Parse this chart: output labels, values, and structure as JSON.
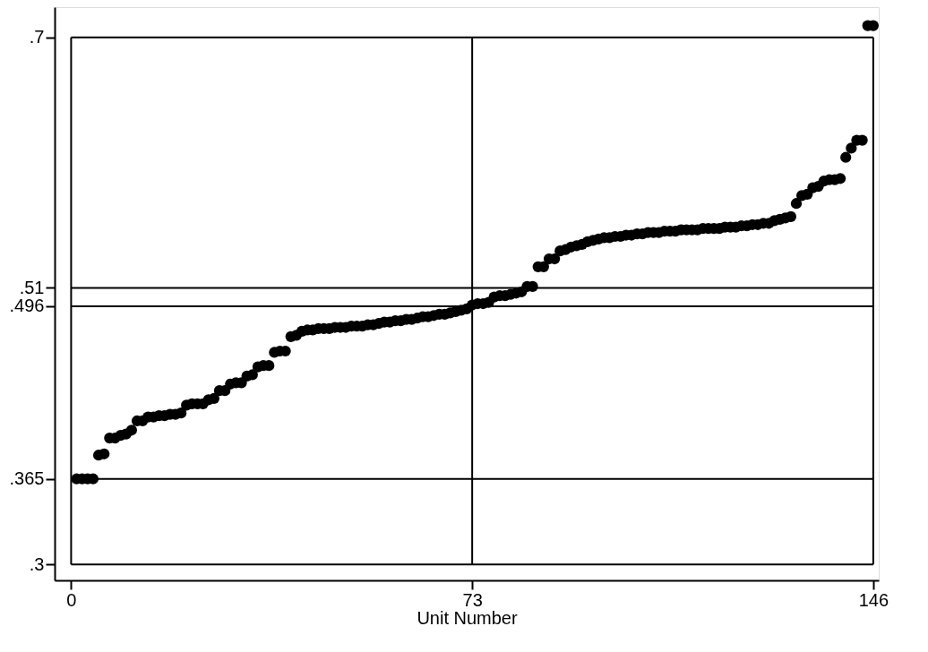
{
  "chart_data": {
    "type": "scatter",
    "xlabel": "Unit Number",
    "x": [
      1,
      2,
      3,
      4,
      5,
      6,
      7,
      8,
      9,
      10,
      11,
      12,
      13,
      14,
      15,
      16,
      17,
      18,
      19,
      20,
      21,
      22,
      23,
      24,
      25,
      26,
      27,
      28,
      29,
      30,
      31,
      32,
      33,
      34,
      35,
      36,
      37,
      38,
      39,
      40,
      41,
      42,
      43,
      44,
      45,
      46,
      47,
      48,
      49,
      50,
      51,
      52,
      53,
      54,
      55,
      56,
      57,
      58,
      59,
      60,
      61,
      62,
      63,
      64,
      65,
      66,
      67,
      68,
      69,
      70,
      71,
      72,
      73,
      74,
      75,
      76,
      77,
      78,
      79,
      80,
      81,
      82,
      83,
      84,
      85,
      86,
      87,
      88,
      89,
      90,
      91,
      92,
      93,
      94,
      95,
      96,
      97,
      98,
      99,
      100,
      101,
      102,
      103,
      104,
      105,
      106,
      107,
      108,
      109,
      110,
      111,
      112,
      113,
      114,
      115,
      116,
      117,
      118,
      119,
      120,
      121,
      122,
      123,
      124,
      125,
      126,
      127,
      128,
      129,
      130,
      131,
      132,
      133,
      134,
      135,
      136,
      137,
      138,
      139,
      140,
      141,
      142,
      143,
      144,
      145,
      146
    ],
    "series": [
      {
        "color": "#000000",
        "values": [
          0.365,
          0.365,
          0.365,
          0.365,
          0.383,
          0.384,
          0.396,
          0.396,
          0.398,
          0.399,
          0.402,
          0.409,
          0.409,
          0.412,
          0.412,
          0.413,
          0.413,
          0.414,
          0.414,
          0.415,
          0.421,
          0.422,
          0.422,
          0.422,
          0.425,
          0.426,
          0.432,
          0.432,
          0.437,
          0.438,
          0.438,
          0.443,
          0.444,
          0.45,
          0.451,
          0.451,
          0.461,
          0.462,
          0.462,
          0.473,
          0.474,
          0.477,
          0.478,
          0.478,
          0.479,
          0.479,
          0.479,
          0.48,
          0.48,
          0.48,
          0.481,
          0.481,
          0.481,
          0.482,
          0.482,
          0.483,
          0.484,
          0.484,
          0.485,
          0.485,
          0.486,
          0.486,
          0.487,
          0.488,
          0.488,
          0.489,
          0.49,
          0.49,
          0.491,
          0.492,
          0.493,
          0.494,
          0.497,
          0.498,
          0.498,
          0.499,
          0.503,
          0.504,
          0.504,
          0.505,
          0.506,
          0.507,
          0.511,
          0.511,
          0.526,
          0.526,
          0.532,
          0.532,
          0.538,
          0.539,
          0.541,
          0.542,
          0.543,
          0.545,
          0.546,
          0.547,
          0.548,
          0.548,
          0.549,
          0.549,
          0.55,
          0.55,
          0.551,
          0.551,
          0.552,
          0.552,
          0.552,
          0.553,
          0.553,
          0.553,
          0.554,
          0.554,
          0.554,
          0.554,
          0.555,
          0.555,
          0.555,
          0.555,
          0.556,
          0.556,
          0.556,
          0.557,
          0.557,
          0.558,
          0.558,
          0.559,
          0.559,
          0.561,
          0.562,
          0.563,
          0.564,
          0.574,
          0.58,
          0.581,
          0.586,
          0.587,
          0.591,
          0.592,
          0.592,
          0.593,
          0.609,
          0.616,
          0.622,
          0.622,
          0.709,
          0.709
        ]
      }
    ],
    "xlim": [
      -3,
      147
    ],
    "ylim": [
      0.288,
      0.723
    ],
    "xticks": [
      0,
      73,
      146
    ],
    "yticks": [
      {
        "value": 0.3,
        "label": ".3"
      },
      {
        "value": 0.365,
        "label": ".365"
      },
      {
        "value": 0.496,
        "label": ".496"
      },
      {
        "value": 0.51,
        "label": ".51"
      },
      {
        "value": 0.7,
        "label": ".7"
      }
    ],
    "grid": true,
    "marker": "circle"
  }
}
